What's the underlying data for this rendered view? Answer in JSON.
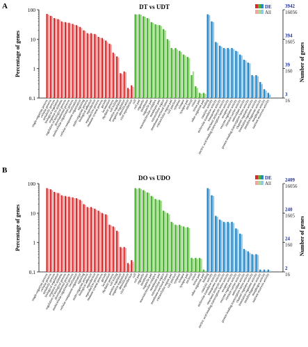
{
  "chart_data": [
    {
      "type": "bar",
      "panel_letter": "A",
      "title": "DT vs UDT",
      "ylabel": "Percentage of genes",
      "ylabel_right": "Number of genes",
      "yscale": "log",
      "ylim": [
        0.1,
        100
      ],
      "y_ticks": [
        "100",
        "10",
        "1",
        "0.1"
      ],
      "right_ticks": [
        {
          "de": "3942",
          "all": "16056"
        },
        {
          "de": "394",
          "all": "1605"
        },
        {
          "de": "39",
          "all": "160"
        },
        {
          "de": "3",
          "all": "16"
        }
      ],
      "legend": {
        "de": "DE",
        "all": "All",
        "placement": "top-right"
      },
      "colors": {
        "bp_de": "#d62b2b",
        "bp_all": "#f3a3a3",
        "cc_de": "#4fb33a",
        "cc_all": "#a8dc92",
        "mf_de": "#2b87c4",
        "mf_all": "#93c9e8",
        "de_text": "#1f2f9c",
        "all_text": "#222222"
      },
      "groups": [
        {
          "key": "bp",
          "categories": [
            "single-organism process",
            "cellular process",
            "metabolic process",
            "biological regulation",
            "response to stimulus",
            "regulation of biological process",
            "developmental process",
            "multicellular organismal process",
            "localization",
            "cellular component organization",
            "signaling",
            "multi-organism process",
            "biological adhesion",
            "reproduction",
            "reproductive process",
            "immune system process",
            "growth",
            "locomotion",
            "rhythmic process",
            "cell killing",
            "positive regulation",
            "negative regulation",
            "detoxification",
            "viral reproduction"
          ],
          "de": [
            72,
            62,
            52,
            48,
            40,
            38,
            36,
            33,
            30,
            26,
            20,
            16,
            16,
            15,
            12,
            11,
            9,
            7,
            3.5,
            2.6,
            0.7,
            0.8,
            0.22,
            0.27
          ],
          "all": [
            68,
            60,
            50,
            46,
            38,
            36,
            34,
            31,
            28,
            24,
            19,
            15,
            15,
            14,
            11,
            10,
            8,
            6.5,
            3.2,
            2.4,
            0.65,
            0.75,
            0.2,
            0.24
          ]
        },
        {
          "key": "cc",
          "categories": [
            "cell",
            "cell part",
            "organelle",
            "membrane",
            "organelle part",
            "macromolecular complex",
            "membrane part",
            "extracellular region",
            "membrane-enclosed lumen",
            "extracellular region part",
            "cell junction",
            "symplast",
            "synapse",
            "synapse part",
            "nucleoid",
            "virion",
            "virion part",
            "other organism part"
          ],
          "de": [
            70,
            70,
            60,
            52,
            38,
            32,
            30,
            22,
            10,
            5,
            5,
            4,
            3,
            2.5,
            0.6,
            0.25,
            0.15,
            0.15
          ],
          "all": [
            68,
            68,
            58,
            50,
            36,
            30,
            28,
            20,
            9,
            4.5,
            4.5,
            3.7,
            2.8,
            2.3,
            0.8,
            0.22,
            0.14,
            0.14
          ]
        },
        {
          "key": "mf",
          "categories": [
            "binding",
            "catalytic activity",
            "molecular transducer activity",
            "transporter activity",
            "structural molecule activity",
            "nucleic acid binding transcription factor activity",
            "receptor activity",
            "enzyme regulator activity",
            "electron carrier activity",
            "antioxidant activity",
            "protein binding transcription factor activity",
            "channel regulator activity",
            "translation regulator activity",
            "metallochaperone activity",
            "morphogen activity",
            "nutrient reservoir activity"
          ],
          "de": [
            70,
            40,
            8,
            6,
            5,
            5,
            5,
            4,
            3,
            2,
            1.6,
            0.6,
            0.6,
            0.35,
            0.2,
            0.15
          ],
          "all": [
            66,
            38,
            7.5,
            5.6,
            4.7,
            4.6,
            4.6,
            3.8,
            2.8,
            1.9,
            1.5,
            0.55,
            0.55,
            0.3,
            0.18,
            0.13
          ]
        }
      ]
    },
    {
      "type": "bar",
      "panel_letter": "B",
      "title": "DO vs UDO",
      "ylabel": "Percentage of genes",
      "ylabel_right": "Number of genes",
      "yscale": "log",
      "ylim": [
        0.1,
        100
      ],
      "y_ticks": [
        "100",
        "10",
        "1",
        "0.1"
      ],
      "right_ticks": [
        {
          "de": "2409",
          "all": "16056"
        },
        {
          "de": "240",
          "all": "1605"
        },
        {
          "de": "24",
          "all": "160"
        },
        {
          "de": "2",
          "all": "16"
        }
      ],
      "legend": {
        "de": "DE",
        "all": "All",
        "placement": "top-right"
      },
      "colors": {
        "bp_de": "#d62b2b",
        "bp_all": "#f3a3a3",
        "cc_de": "#4fb33a",
        "cc_all": "#a8dc92",
        "mf_de": "#2b87c4",
        "mf_all": "#93c9e8",
        "de_text": "#1f2f9c",
        "all_text": "#222222"
      },
      "groups": [
        {
          "key": "bp",
          "categories": [
            "single-organism process",
            "cellular process",
            "metabolic process",
            "biological regulation",
            "response to stimulus",
            "regulation of biological process",
            "developmental process",
            "multicellular organismal process",
            "localization",
            "cellular component organization",
            "signaling",
            "multi-organism process",
            "biological adhesion",
            "reproduction",
            "reproductive process",
            "immune system process",
            "growth",
            "locomotion",
            "rhythmic process",
            "cell killing",
            "positive regulation",
            "negative regulation",
            "detoxification",
            "viral reproduction"
          ],
          "de": [
            70,
            64,
            52,
            48,
            40,
            38,
            36,
            34,
            32,
            28,
            20,
            16,
            16,
            14,
            12,
            10,
            9,
            4,
            3.5,
            2.5,
            0.7,
            0.7,
            0.2,
            0.25
          ],
          "all": [
            66,
            60,
            50,
            46,
            38,
            36,
            34,
            32,
            30,
            26,
            19,
            15,
            15,
            13,
            11,
            9.5,
            8.5,
            3.8,
            3.3,
            2.3,
            0.65,
            0.65,
            0.18,
            0.22
          ]
        },
        {
          "key": "cc",
          "categories": [
            "cell",
            "cell part",
            "organelle",
            "membrane",
            "organelle part",
            "macromolecular complex",
            "membrane part",
            "extracellular region",
            "membrane-enclosed lumen",
            "extracellular region part",
            "cell junction",
            "symplast",
            "synapse",
            "synapse part",
            "nucleoid",
            "virion",
            "virion part",
            "other organism part"
          ],
          "de": [
            70,
            70,
            60,
            50,
            38,
            30,
            28,
            12,
            10,
            5,
            4,
            4,
            3.5,
            3.3,
            0.3,
            0.3,
            0.3,
            0.12
          ],
          "all": [
            66,
            66,
            56,
            48,
            36,
            28,
            26,
            11,
            9,
            4.6,
            3.8,
            3.7,
            3.2,
            3.1,
            0.28,
            0.28,
            0.28,
            0.11
          ]
        },
        {
          "key": "mf",
          "categories": [
            "binding",
            "catalytic activity",
            "molecular transducer activity",
            "transporter activity",
            "structural molecule activity",
            "nucleic acid binding transcription factor activity",
            "receptor activity",
            "enzyme regulator activity",
            "electron carrier activity",
            "antioxidant activity",
            "protein binding transcription factor activity",
            "channel regulator activity",
            "translation regulator activity",
            "metallochaperone activity",
            "morphogen activity",
            "nutrient reservoir activity"
          ],
          "de": [
            70,
            40,
            8,
            6,
            5,
            5,
            5,
            3,
            2,
            0.6,
            0.5,
            0.4,
            0.4,
            0.12,
            0.12,
            0.12
          ],
          "all": [
            66,
            38,
            7.5,
            5.6,
            4.7,
            4.6,
            4.6,
            2.8,
            1.9,
            0.55,
            0.45,
            0.38,
            0.38,
            0.11,
            0.11,
            0.11
          ]
        }
      ]
    }
  ]
}
